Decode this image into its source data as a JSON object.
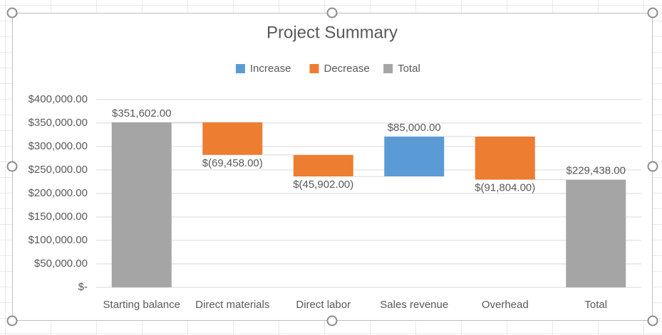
{
  "chart_data": {
    "type": "waterfall",
    "title": "Project Summary",
    "categories": [
      "Starting balance",
      "Direct materials",
      "Direct labor",
      "Sales revenue",
      "Overhead",
      "Total"
    ],
    "values": [
      351602,
      -69458,
      -45902,
      85000,
      -91804,
      229438
    ],
    "value_labels": [
      "$351,602.00",
      "$(69,458.00)",
      "$(45,902.00)",
      "$85,000.00",
      "$(91,804.00)",
      "$229,438.00"
    ],
    "is_total": [
      true,
      false,
      false,
      false,
      false,
      true
    ],
    "legend": [
      {
        "name": "Increase",
        "color": "#5b9bd5"
      },
      {
        "name": "Decrease",
        "color": "#ed7d31"
      },
      {
        "name": "Total",
        "color": "#a5a5a5"
      }
    ],
    "ylim": [
      0,
      400000
    ],
    "yticks": [
      {
        "value": 0,
        "label": "$-"
      },
      {
        "value": 50000,
        "label": "$50,000.00"
      },
      {
        "value": 100000,
        "label": "$100,000.00"
      },
      {
        "value": 150000,
        "label": "$150,000.00"
      },
      {
        "value": 200000,
        "label": "$200,000.00"
      },
      {
        "value": 250000,
        "label": "$250,000.00"
      },
      {
        "value": 300000,
        "label": "$300,000.00"
      },
      {
        "value": 350000,
        "label": "$350,000.00"
      },
      {
        "value": 400000,
        "label": "$400,000.00"
      }
    ],
    "grid": true
  }
}
